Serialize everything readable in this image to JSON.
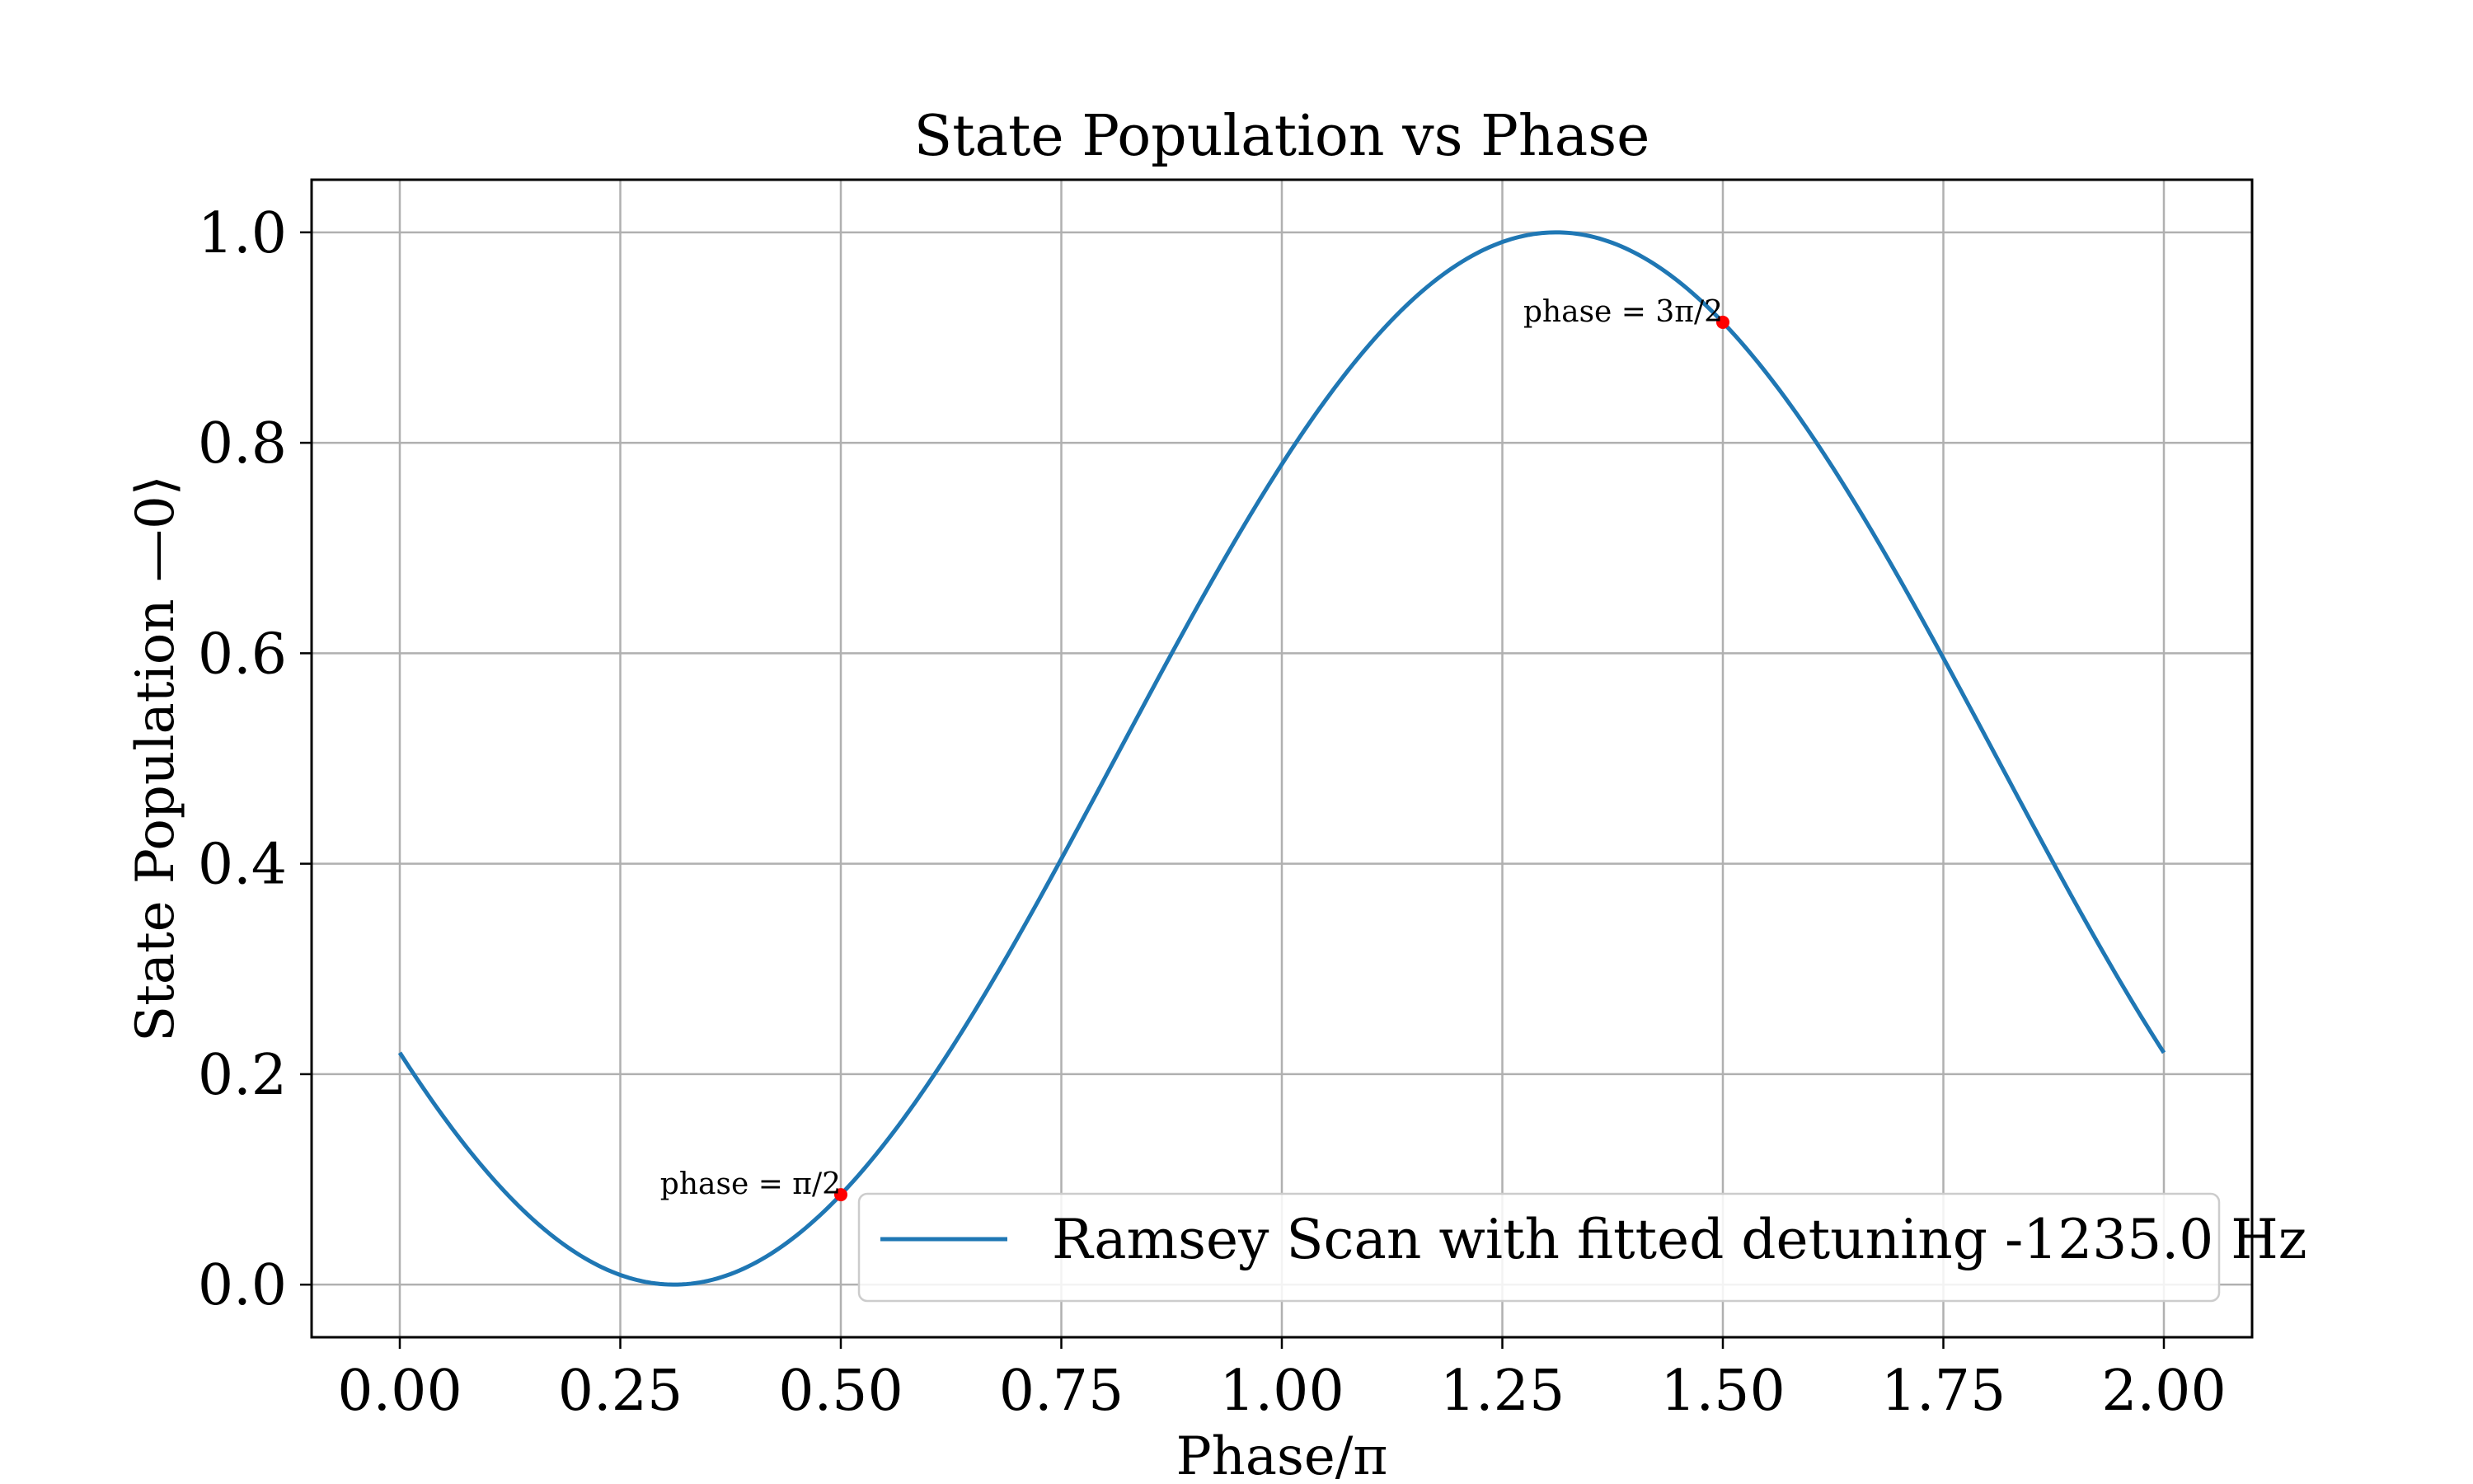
{
  "chart_data": {
    "type": "line",
    "title": "State Population vs Phase",
    "xlabel": "Phase/π",
    "ylabel": "State Population —0⟩",
    "xlim": [
      -0.1,
      2.1
    ],
    "ylim": [
      -0.05,
      1.05
    ],
    "xticks": [
      0.0,
      0.25,
      0.5,
      0.75,
      1.0,
      1.25,
      1.5,
      1.75,
      2.0
    ],
    "xtick_labels": [
      "0.00",
      "0.25",
      "0.50",
      "0.75",
      "1.00",
      "1.25",
      "1.50",
      "1.75",
      "2.00"
    ],
    "yticks": [
      0.0,
      0.2,
      0.4,
      0.6,
      0.8,
      1.0
    ],
    "ytick_labels": [
      "0.0",
      "0.2",
      "0.4",
      "0.6",
      "0.8",
      "1.0"
    ],
    "grid": true,
    "legend_position": "lower-right",
    "series": [
      {
        "name": "Ramsey Scan with fitted detuning -1235.0 Hz",
        "color": "#1f77b4",
        "x": [
          0.0,
          0.05,
          0.1,
          0.15,
          0.2,
          0.25,
          0.3,
          0.3111,
          0.35,
          0.4,
          0.45,
          0.5,
          0.55,
          0.6,
          0.65,
          0.7,
          0.75,
          0.8,
          0.85,
          0.9,
          0.95,
          1.0,
          1.05,
          1.1,
          1.15,
          1.2,
          1.25,
          1.3,
          1.3111,
          1.35,
          1.4,
          1.45,
          1.5,
          1.55,
          1.6,
          1.65,
          1.7,
          1.75,
          1.8,
          1.85,
          1.9,
          1.95,
          2.0
        ],
        "y": [
          0.22,
          0.1585,
          0.1063,
          0.0648,
          0.0317,
          0.0092,
          0.0012,
          0.0,
          0.0037,
          0.0192,
          0.0469,
          0.086,
          0.1345,
          0.1908,
          0.2532,
          0.3199,
          0.3894,
          0.4598,
          0.5294,
          0.5963,
          0.6589,
          0.7159,
          0.766,
          0.8085,
          0.8428,
          0.8687,
          0.8856,
          0.8988,
          1.0,
          0.9963,
          0.9808,
          0.9531,
          0.914,
          0.8655,
          0.8092,
          0.7468,
          0.6801,
          0.6106,
          0.5402,
          0.4706,
          0.4037,
          0.3411,
          0.22
        ]
      }
    ],
    "annotations": [
      {
        "text": "phase = π/2",
        "x": 0.5,
        "y": 0.086,
        "marker_color": "#ff0000"
      },
      {
        "text": "phase = 3π/2",
        "x": 1.5,
        "y": 0.914,
        "marker_color": "#ff0000"
      }
    ]
  }
}
